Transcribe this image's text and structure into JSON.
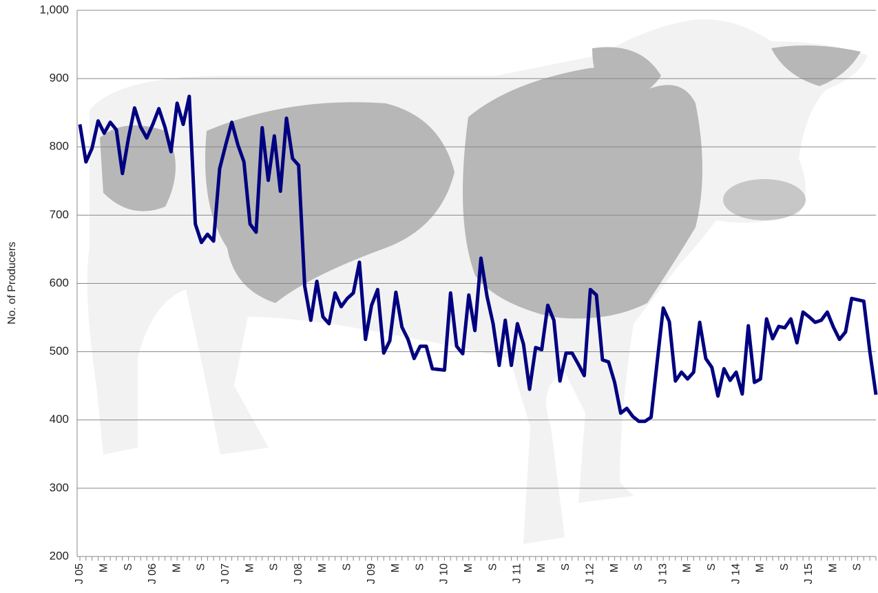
{
  "chart_data": {
    "type": "line",
    "y_label": "No. of Producers",
    "categories": [
      "J 05",
      null,
      null,
      null,
      "M",
      null,
      null,
      null,
      "S",
      null,
      null,
      null,
      "J 06",
      null,
      null,
      null,
      "M",
      null,
      null,
      null,
      "S",
      null,
      null,
      null,
      "J 07",
      null,
      null,
      null,
      "M",
      null,
      null,
      null,
      "S",
      null,
      null,
      null,
      "J 08",
      null,
      null,
      null,
      "M",
      null,
      null,
      null,
      "S",
      null,
      null,
      null,
      "J 09",
      null,
      null,
      null,
      "M",
      null,
      null,
      null,
      "S",
      null,
      null,
      null,
      "J 10",
      null,
      null,
      null,
      "M",
      null,
      null,
      null,
      "S",
      null,
      null,
      null,
      "J 11",
      null,
      null,
      null,
      "M",
      null,
      null,
      null,
      "S",
      null,
      null,
      null,
      "J 12",
      null,
      null,
      null,
      "M",
      null,
      null,
      null,
      "S",
      null,
      null,
      null,
      "J 13",
      null,
      null,
      null,
      "M",
      null,
      null,
      null,
      "S",
      null,
      null,
      null,
      "J 14",
      null,
      null,
      null,
      "M",
      null,
      null,
      null,
      "S",
      null,
      null,
      null,
      "J 15",
      null,
      null,
      null,
      "M",
      null,
      null,
      null,
      "S",
      null,
      null,
      null
    ],
    "series": [
      {
        "name": "Producers",
        "color": "#000080",
        "values": [
          833,
          778,
          798,
          838,
          820,
          836,
          825,
          761,
          813,
          857,
          829,
          813,
          833,
          856,
          829,
          793,
          864,
          833,
          874,
          687,
          660,
          672,
          662,
          768,
          803,
          836,
          803,
          778,
          687,
          675,
          828,
          751,
          816,
          735,
          842,
          783,
          773,
          596,
          546,
          603,
          551,
          541,
          586,
          566,
          578,
          586,
          631,
          518,
          568,
          591,
          498,
          516,
          587,
          536,
          518,
          490,
          508,
          508,
          475,
          474,
          473,
          586,
          508,
          497,
          583,
          531,
          637,
          581,
          541,
          480,
          546,
          480,
          541,
          511,
          445,
          506,
          503,
          568,
          546,
          457,
          498,
          498,
          482,
          465,
          591,
          583,
          488,
          485,
          455,
          410,
          417,
          405,
          398,
          398,
          404,
          485,
          564,
          544,
          457,
          470,
          460,
          470,
          543,
          490,
          477,
          435,
          475,
          458,
          470,
          438,
          538,
          455,
          460,
          548,
          519,
          537,
          535,
          548,
          513,
          558,
          551,
          543,
          546,
          558,
          536,
          518,
          529,
          578,
          576,
          574,
          500,
          437
        ]
      }
    ],
    "ylim": [
      200,
      1000
    ],
    "yticks": [
      200,
      300,
      400,
      500,
      600,
      700,
      800,
      900,
      {
        "value": 1000,
        "label": "1,000"
      }
    ],
    "grid": true
  }
}
